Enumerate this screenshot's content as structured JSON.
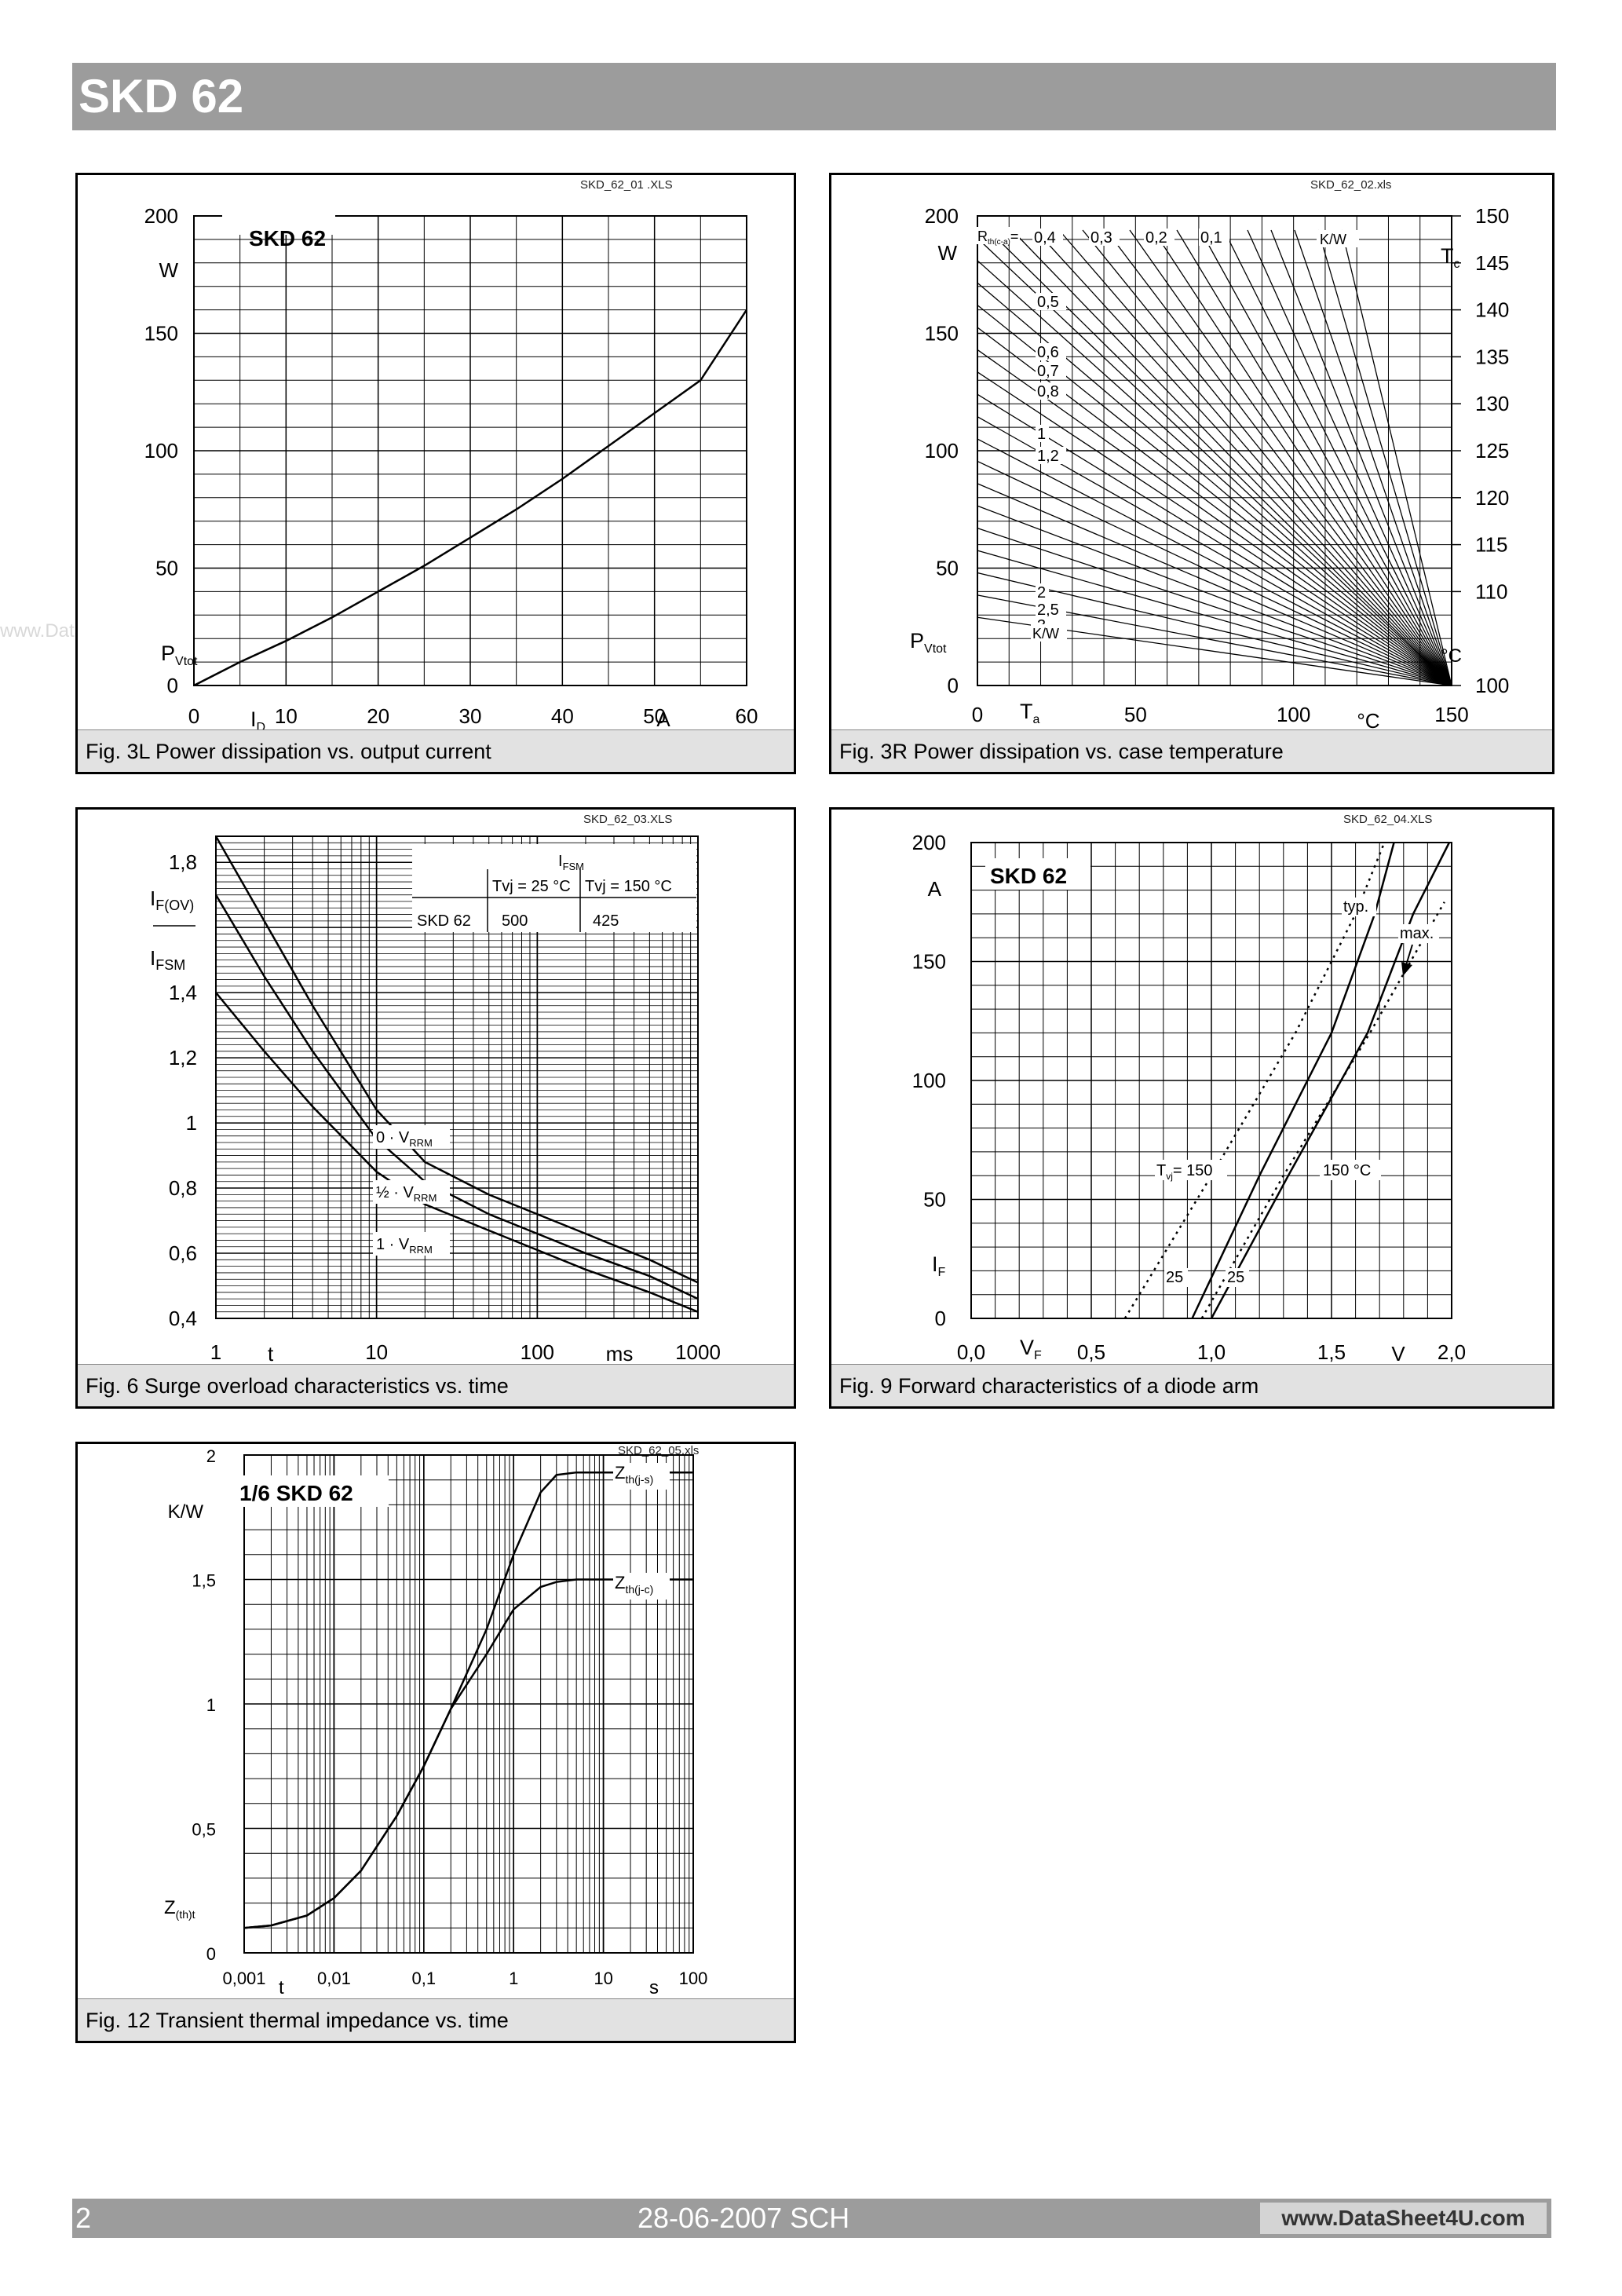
{
  "header": {
    "title": "SKD 62"
  },
  "watermark": "www.DataSheet4U.com",
  "footer": {
    "page": "2",
    "date": "28-06-2007  SCH",
    "site": "www.DataSheet4U.com"
  },
  "figures": [
    {
      "id": "fig3l",
      "file": "SKD_62_01 .XLS",
      "caption": "Fig. 3L Power dissipation vs. output current",
      "tag": "SKD 62",
      "ylabel": "P",
      "ylabel_sub": "Vtot",
      "yunit": "W",
      "xlabel": "I",
      "xlabel_sub": "D",
      "xunit": "A"
    },
    {
      "id": "fig3r",
      "file": "SKD_62_02.xls",
      "caption": "Fig. 3R Power dissipation vs. case temperature",
      "ylabel": "P",
      "ylabel_sub": "Vtot",
      "yunit": "W",
      "xlabel": "T",
      "xlabel_sub": "a",
      "xunit": "°C",
      "y2label": "T",
      "y2label_sub": "c",
      "y2unit": "°C",
      "rth_label": "R",
      "rth_label_sub": "th(c-a)",
      "rth_eq": "=",
      "rth_unit": "K/W",
      "rth_unit2": "K/W"
    },
    {
      "id": "fig6",
      "file": "SKD_62_03.XLS",
      "caption": "Fig. 6 Surge overload characteristics vs. time",
      "ylabel_top": "I",
      "ylabel_top_sub": "F(OV)",
      "ylabel_bot": "I",
      "ylabel_bot_sub": "FSM",
      "xlabel": "t",
      "xunit": "ms",
      "table": {
        "head": "I",
        "head_sub": "FSM",
        "col1": "Tvj = 25 °C",
        "col2": "Tvj = 150 °C",
        "row": "SKD 62",
        "v1": "500",
        "v2": "425"
      },
      "curve_labels": [
        {
          "prefix": "0 · V",
          "sub": "RRM"
        },
        {
          "prefix": "½ · V",
          "sub": "RRM"
        },
        {
          "prefix": "1 · V",
          "sub": "RRM"
        }
      ]
    },
    {
      "id": "fig9",
      "file": "SKD_62_04.XLS",
      "caption": "Fig. 9 Forward characteristics of a diode arm",
      "tag": "SKD 62",
      "ylabel": "I",
      "ylabel_sub": "F",
      "yunit": "A",
      "xlabel": "V",
      "xlabel_sub": "F",
      "xunit": "V",
      "typ": "typ.",
      "max": "max.",
      "tvj_label": "T",
      "tvj_sub": "vj",
      "tvj_eq": "= 150",
      "t150b": "150  °C",
      "t25a": "25",
      "t25b": "25"
    },
    {
      "id": "fig12",
      "file": "SKD_62_05.xls",
      "caption": "Fig. 12 Transient thermal impedance vs. time",
      "tag": "1/6 SKD 62",
      "ylabel": "Z",
      "ylabel_sub": "(th)t",
      "yunit": "K/W",
      "xlabel": "t",
      "xunit": "s",
      "zjs": "Z",
      "zjs_sub": "th(j-s)",
      "zjc": "Z",
      "zjc_sub": "th(j-c)"
    }
  ],
  "chart_data": [
    {
      "id": "fig3l",
      "type": "line",
      "xticks": [
        "0",
        "10",
        "20",
        "30",
        "40",
        "50",
        "60"
      ],
      "yticks": [
        "0",
        "50",
        "100",
        "150",
        "200"
      ],
      "xlim": [
        0,
        60
      ],
      "ylim": [
        0,
        200
      ],
      "grid": true,
      "series": [
        {
          "x": [
            0,
            5,
            10,
            15,
            20,
            25,
            30,
            35,
            40,
            45,
            50,
            55,
            60
          ],
          "y": [
            0,
            10,
            19,
            29,
            40,
            51,
            63,
            75,
            88,
            102,
            116,
            130,
            160
          ]
        }
      ]
    },
    {
      "id": "fig3r",
      "type": "line",
      "xticks": [
        "0",
        "50",
        "100",
        "150"
      ],
      "yticks": [
        "0",
        "50",
        "100",
        "150",
        "200"
      ],
      "y2ticks": [
        "100",
        "110",
        "115",
        "120",
        "125",
        "130",
        "135",
        "140",
        "145",
        "150"
      ],
      "xlim": [
        0,
        150
      ],
      "ylim": [
        0,
        200
      ],
      "y2lim": [
        100,
        150
      ],
      "grid": true,
      "rth_values": [
        "0,4",
        "0,3",
        "0,2",
        "0,1",
        "0,5",
        "0,6",
        "0,7",
        "0,8",
        "1",
        "1,2",
        "2",
        "2,5",
        "3"
      ],
      "rth_numeric": [
        0.1,
        0.2,
        0.3,
        0.4,
        0.5,
        0.6,
        0.7,
        0.8,
        1.0,
        1.2,
        2.0,
        2.5,
        3.0
      ]
    },
    {
      "id": "fig6",
      "type": "line",
      "xscale": "log",
      "xticks": [
        "1",
        "10",
        "100",
        "1000"
      ],
      "yticks": [
        "0,4",
        "0,6",
        "0,8",
        "1",
        "1,2",
        "1,4",
        "1,8"
      ],
      "xlim": [
        1,
        1000
      ],
      "ylim": [
        0.4,
        1.88
      ],
      "grid": true,
      "series": [
        {
          "x": [
            1,
            2,
            4,
            10,
            20,
            50,
            100,
            200,
            500,
            1000
          ],
          "y": [
            1.88,
            1.62,
            1.36,
            1.04,
            0.88,
            0.78,
            0.72,
            0.66,
            0.58,
            0.51
          ]
        },
        {
          "x": [
            1,
            2,
            4,
            10,
            20,
            50,
            100,
            200,
            500,
            1000
          ],
          "y": [
            1.7,
            1.45,
            1.22,
            0.95,
            0.82,
            0.72,
            0.66,
            0.6,
            0.53,
            0.46
          ]
        },
        {
          "x": [
            1,
            2,
            4,
            10,
            20,
            50,
            100,
            200,
            500,
            1000
          ],
          "y": [
            1.4,
            1.22,
            1.05,
            0.85,
            0.75,
            0.67,
            0.61,
            0.55,
            0.48,
            0.42
          ]
        }
      ]
    },
    {
      "id": "fig9",
      "type": "line",
      "xticks": [
        "0,0",
        "0,5",
        "1,0",
        "1,5",
        "2,0"
      ],
      "yticks": [
        "0",
        "50",
        "100",
        "150",
        "200"
      ],
      "xlim": [
        0,
        2.0
      ],
      "ylim": [
        0,
        200
      ],
      "grid": true,
      "series": [
        {
          "name": "typ. 25",
          "style": "solid",
          "x": [
            0.92,
            1.2,
            1.5,
            1.68,
            1.76
          ],
          "y": [
            0,
            60,
            120,
            170,
            200
          ]
        },
        {
          "name": "max. 25",
          "style": "solid",
          "x": [
            1.0,
            1.32,
            1.65,
            1.84,
            1.99
          ],
          "y": [
            0,
            60,
            120,
            170,
            200
          ]
        },
        {
          "name": "typ. 150",
          "style": "dotted",
          "x": [
            0.64,
            1.0,
            1.35,
            1.6,
            1.72
          ],
          "y": [
            0,
            60,
            120,
            170,
            200
          ]
        },
        {
          "name": "max. 150",
          "style": "dotted",
          "x": [
            0.96,
            1.3,
            1.66,
            1.97
          ],
          "y": [
            0,
            60,
            120,
            175
          ]
        }
      ]
    },
    {
      "id": "fig12",
      "type": "line",
      "xscale": "log",
      "xticks": [
        "0,001",
        "0,01",
        "0,1",
        "1",
        "10",
        "100"
      ],
      "yticks": [
        "0",
        "0,5",
        "1",
        "1,5",
        "2"
      ],
      "xlim": [
        0.001,
        100
      ],
      "ylim": [
        0,
        2
      ],
      "grid": true,
      "series": [
        {
          "name": "Zth(j-s)",
          "x": [
            0.001,
            0.002,
            0.005,
            0.01,
            0.02,
            0.05,
            0.1,
            0.2,
            0.5,
            1,
            2,
            3,
            5,
            10,
            100
          ],
          "y": [
            0.1,
            0.11,
            0.15,
            0.22,
            0.33,
            0.55,
            0.75,
            0.98,
            1.3,
            1.6,
            1.85,
            1.92,
            1.93,
            1.93,
            1.93
          ]
        },
        {
          "name": "Zth(j-c)",
          "x": [
            0.001,
            0.002,
            0.005,
            0.01,
            0.02,
            0.05,
            0.1,
            0.2,
            0.5,
            1,
            2,
            3,
            5,
            10,
            100
          ],
          "y": [
            0.1,
            0.11,
            0.15,
            0.22,
            0.33,
            0.55,
            0.75,
            0.98,
            1.2,
            1.38,
            1.47,
            1.49,
            1.5,
            1.5,
            1.5
          ]
        }
      ]
    }
  ]
}
